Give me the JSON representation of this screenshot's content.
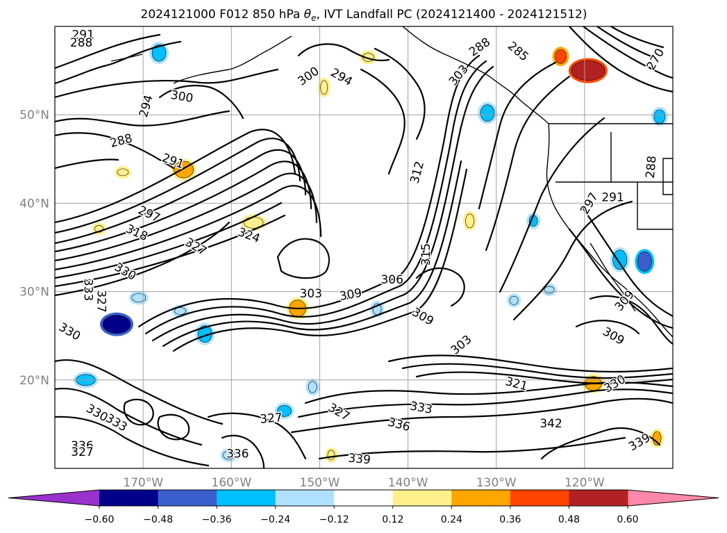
{
  "chart_data": {
    "type": "contour map",
    "title": "2024121000 F012 850 hPa θe, IVT Landfall PC (2024121400 - 2024121512)",
    "title_prefix": "2024121000 F012 850 hPa ",
    "title_symbol": "θ",
    "title_symbol_sub": "e",
    "title_suffix": ", IVT Landfall PC (2024121400 - 2024121512)",
    "xlim": [
      -180,
      -110
    ],
    "ylim": [
      10,
      60
    ],
    "x_ticks": [
      {
        "value": -170,
        "label": "170°W"
      },
      {
        "value": -160,
        "label": "160°W"
      },
      {
        "value": -150,
        "label": "150°W"
      },
      {
        "value": -140,
        "label": "140°W"
      },
      {
        "value": -130,
        "label": "130°W"
      },
      {
        "value": -120,
        "label": "120°W"
      }
    ],
    "y_ticks": [
      {
        "value": 20,
        "label": "20°N"
      },
      {
        "value": 30,
        "label": "30°N"
      },
      {
        "value": 40,
        "label": "40°N"
      },
      {
        "value": 50,
        "label": "50°N"
      }
    ],
    "grid": true,
    "colorbar": {
      "orientation": "horizontal",
      "extend": "both",
      "levels": [
        -0.6,
        -0.48,
        -0.36,
        -0.24,
        -0.12,
        0.12,
        0.24,
        0.36,
        0.48,
        0.6
      ],
      "tick_labels": [
        "−0.60",
        "−0.48",
        "−0.36",
        "−0.24",
        "−0.12",
        "0.12",
        "0.24",
        "0.36",
        "0.48",
        "0.60"
      ],
      "colors": [
        "#9932cc",
        "#00008b",
        "#3a5fcd",
        "#00bfff",
        "#b0e2ff",
        "#ffffff",
        "#fff08c",
        "#ffa500",
        "#ff4500",
        "#b22222",
        "#ff88aa"
      ]
    },
    "contour_labels": [
      {
        "text": "291",
        "lon": -176.8,
        "lat": 59.1,
        "rot": 0
      },
      {
        "text": "288",
        "lon": -177.0,
        "lat": 58.2,
        "rot": 0
      },
      {
        "text": "294",
        "lon": -169.7,
        "lat": 51.0,
        "rot": -75
      },
      {
        "text": "300",
        "lon": -165.6,
        "lat": 52.1,
        "rot": 10
      },
      {
        "text": "288",
        "lon": -172.5,
        "lat": 47.1,
        "rot": -15
      },
      {
        "text": "291",
        "lon": -166.6,
        "lat": 44.8,
        "rot": 20
      },
      {
        "text": "297",
        "lon": -169.3,
        "lat": 38.8,
        "rot": 25
      },
      {
        "text": "318",
        "lon": -170.7,
        "lat": 36.7,
        "rot": 25
      },
      {
        "text": "327",
        "lon": -164.0,
        "lat": 35.1,
        "rot": 30
      },
      {
        "text": "324",
        "lon": -158.0,
        "lat": 36.4,
        "rot": 20
      },
      {
        "text": "330",
        "lon": -172.0,
        "lat": 32.3,
        "rot": 30
      },
      {
        "text": "333",
        "lon": -176.2,
        "lat": 30.2,
        "rot": 90
      },
      {
        "text": "327",
        "lon": -174.7,
        "lat": 28.9,
        "rot": 90
      },
      {
        "text": "330",
        "lon": -178.3,
        "lat": 25.5,
        "rot": 30
      },
      {
        "text": "294",
        "lon": -147.5,
        "lat": 54.3,
        "rot": 30
      },
      {
        "text": "300",
        "lon": -151.3,
        "lat": 54.4,
        "rot": -35
      },
      {
        "text": "312",
        "lon": -139.0,
        "lat": 43.5,
        "rot": -75
      },
      {
        "text": "315",
        "lon": -138.0,
        "lat": 34.2,
        "rot": -90
      },
      {
        "text": "306",
        "lon": -141.8,
        "lat": 31.4,
        "rot": 0
      },
      {
        "text": "303",
        "lon": -151.0,
        "lat": 29.8,
        "rot": 0
      },
      {
        "text": "309",
        "lon": -146.5,
        "lat": 29.7,
        "rot": -10
      },
      {
        "text": "309",
        "lon": -138.3,
        "lat": 27.2,
        "rot": 30
      },
      {
        "text": "303",
        "lon": -134.0,
        "lat": 24.0,
        "rot": -40
      },
      {
        "text": "321",
        "lon": -127.7,
        "lat": 19.6,
        "rot": 15
      },
      {
        "text": "330",
        "lon": -116.6,
        "lat": 19.6,
        "rot": -30
      },
      {
        "text": "309",
        "lon": -116.7,
        "lat": 25.0,
        "rot": 30
      },
      {
        "text": "309",
        "lon": -115.5,
        "lat": 29.0,
        "rot": -50
      },
      {
        "text": "333",
        "lon": -138.5,
        "lat": 16.9,
        "rot": 10
      },
      {
        "text": "336",
        "lon": -141.0,
        "lat": 15.0,
        "rot": 15
      },
      {
        "text": "327",
        "lon": -147.8,
        "lat": 16.4,
        "rot": 30
      },
      {
        "text": "327",
        "lon": -155.5,
        "lat": 15.7,
        "rot": -5
      },
      {
        "text": "339",
        "lon": -145.5,
        "lat": 11.1,
        "rot": 5
      },
      {
        "text": "342",
        "lon": -123.8,
        "lat": 15.1,
        "rot": 0
      },
      {
        "text": "339",
        "lon": -113.8,
        "lat": 13.0,
        "rot": -30
      },
      {
        "text": "336",
        "lon": -159.3,
        "lat": 11.7,
        "rot": 0
      },
      {
        "text": "330",
        "lon": -175.2,
        "lat": 16.3,
        "rot": 30
      },
      {
        "text": "333",
        "lon": -173.0,
        "lat": 15.2,
        "rot": 30
      },
      {
        "text": "336",
        "lon": -176.9,
        "lat": 12.6,
        "rot": 0
      },
      {
        "text": "327",
        "lon": -176.9,
        "lat": 11.9,
        "rot": 0
      },
      {
        "text": "288",
        "lon": -131.9,
        "lat": 57.7,
        "rot": -35
      },
      {
        "text": "285",
        "lon": -127.5,
        "lat": 57.2,
        "rot": 40
      },
      {
        "text": "303",
        "lon": -134.3,
        "lat": 54.5,
        "rot": -50
      },
      {
        "text": "288",
        "lon": -112.5,
        "lat": 44.1,
        "rot": -85
      },
      {
        "text": "291",
        "lon": -116.8,
        "lat": 40.7,
        "rot": 0
      },
      {
        "text": "297",
        "lon": -119.5,
        "lat": 40.0,
        "rot": -60
      },
      {
        "text": "270",
        "lon": -112.0,
        "lat": 56.3,
        "rot": -60
      }
    ],
    "field_blobs": [
      {
        "lon": -173.0,
        "lat": 26.3,
        "rx": 20,
        "ry": 13,
        "level": 1
      },
      {
        "lon": -113.2,
        "lat": 33.4,
        "rx": 10,
        "ry": 14,
        "level": 2
      },
      {
        "lon": -119.6,
        "lat": 55.0,
        "rx": 24,
        "ry": 14,
        "level": 9
      },
      {
        "lon": -122.7,
        "lat": 56.6,
        "rx": 8,
        "ry": 10,
        "level": 8
      },
      {
        "lon": -165.4,
        "lat": 43.8,
        "rx": 14,
        "ry": 12,
        "level": 7
      },
      {
        "lon": -152.5,
        "lat": 28.1,
        "rx": 12,
        "ry": 12,
        "level": 7
      },
      {
        "lon": -119.0,
        "lat": 19.6,
        "rx": 12,
        "ry": 10,
        "level": 7
      },
      {
        "lon": -157.5,
        "lat": 37.8,
        "rx": 14,
        "ry": 8,
        "level": 6
      },
      {
        "lon": -176.5,
        "lat": 20.0,
        "rx": 14,
        "ry": 8,
        "level": 3
      },
      {
        "lon": -163.0,
        "lat": 25.2,
        "rx": 10,
        "ry": 12,
        "level": 3
      },
      {
        "lon": -168.2,
        "lat": 57.0,
        "rx": 10,
        "ry": 12,
        "level": 3
      },
      {
        "lon": -131.0,
        "lat": 50.2,
        "rx": 10,
        "ry": 12,
        "level": 3
      },
      {
        "lon": -154.0,
        "lat": 16.5,
        "rx": 10,
        "ry": 8,
        "level": 3
      },
      {
        "lon": -116.0,
        "lat": 33.6,
        "rx": 10,
        "ry": 14,
        "level": 3
      },
      {
        "lon": -125.8,
        "lat": 38.0,
        "rx": 6,
        "ry": 8,
        "level": 3
      },
      {
        "lon": -111.5,
        "lat": 49.8,
        "rx": 8,
        "ry": 10,
        "level": 3
      },
      {
        "lon": -165.8,
        "lat": 27.8,
        "rx": 8,
        "ry": 5,
        "level": 4
      },
      {
        "lon": -170.5,
        "lat": 29.3,
        "rx": 10,
        "ry": 6,
        "level": 4
      },
      {
        "lon": -144.5,
        "lat": 56.5,
        "rx": 8,
        "ry": 6,
        "level": 6
      },
      {
        "lon": -149.5,
        "lat": 53.1,
        "rx": 5,
        "ry": 10,
        "level": 6
      },
      {
        "lon": -143.5,
        "lat": 28.0,
        "rx": 6,
        "ry": 8,
        "level": 4
      },
      {
        "lon": -111.8,
        "lat": 13.4,
        "rx": 6,
        "ry": 10,
        "level": 7
      },
      {
        "lon": -133.0,
        "lat": 38.0,
        "rx": 6,
        "ry": 10,
        "level": 6
      },
      {
        "lon": -175.0,
        "lat": 37.1,
        "rx": 6,
        "ry": 5,
        "level": 6
      },
      {
        "lon": -160.3,
        "lat": 11.5,
        "rx": 8,
        "ry": 6,
        "level": 4
      },
      {
        "lon": -128.0,
        "lat": 29.0,
        "rx": 6,
        "ry": 6,
        "level": 4
      },
      {
        "lon": -124.0,
        "lat": 30.2,
        "rx": 7,
        "ry": 5,
        "level": 4
      },
      {
        "lon": -150.8,
        "lat": 19.2,
        "rx": 6,
        "ry": 8,
        "level": 4
      },
      {
        "lon": -148.7,
        "lat": 11.5,
        "rx": 5,
        "ry": 7,
        "level": 6
      },
      {
        "lon": -172.3,
        "lat": 43.5,
        "rx": 8,
        "ry": 5,
        "level": 6
      }
    ]
  }
}
